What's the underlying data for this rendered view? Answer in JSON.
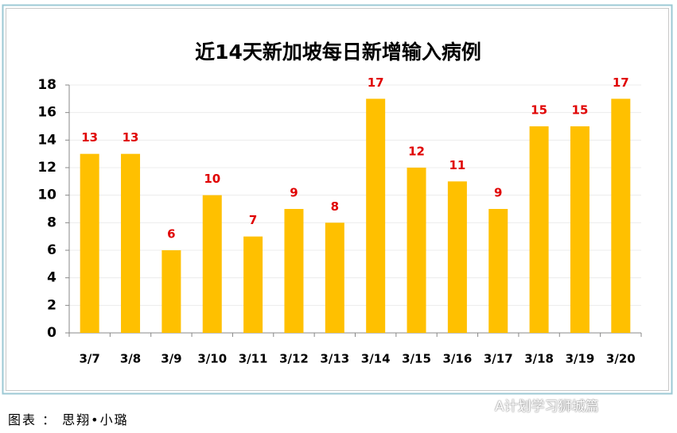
{
  "chart_data": {
    "type": "bar",
    "title": "近14天新加坡每日新增输入病例",
    "categories": [
      "3/7",
      "3/8",
      "3/9",
      "3/10",
      "3/11",
      "3/12",
      "3/13",
      "3/14",
      "3/15",
      "3/16",
      "3/17",
      "3/18",
      "3/19",
      "3/20"
    ],
    "values": [
      13,
      13,
      6,
      10,
      7,
      9,
      8,
      17,
      12,
      11,
      9,
      15,
      15,
      17
    ],
    "color": "#ffc000",
    "label_color": "#e00000",
    "ylim": [
      0,
      18
    ],
    "yticks": [
      0,
      2,
      4,
      6,
      8,
      10,
      12,
      14,
      16,
      18
    ],
    "grid": true
  },
  "caption": "图表 ： 思翔•小璐",
  "watermark": "A计划学习狮城篇"
}
